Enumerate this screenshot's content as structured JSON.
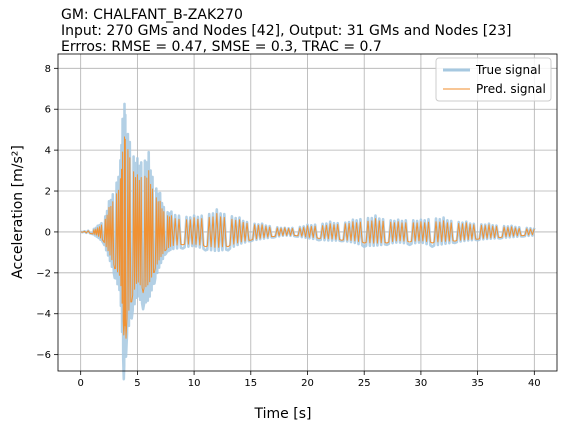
{
  "chart_data": {
    "type": "line",
    "title_lines": [
      "GM: CHALFANT_B-ZAK270",
      "Input: 270 GMs and Nodes [42], Output: 31 GMs and Nodes [23]",
      "Errros: RMSE = 0.47, SMSE = 0.3, TRAC = 0.7"
    ],
    "xlabel": "Time [s]",
    "ylabel": "Acceleration [m/s²]",
    "xlim": [
      -2,
      42
    ],
    "ylim": [
      -6.8,
      8.7
    ],
    "xticks": [
      0,
      5,
      10,
      15,
      20,
      25,
      30,
      35,
      40
    ],
    "yticks": [
      -6,
      -4,
      -2,
      0,
      2,
      4,
      6,
      8
    ],
    "grid": true,
    "legend_position": "top-right",
    "series": [
      {
        "name": "True signal",
        "color": "#a6c8e0",
        "style": "thick",
        "peaks": [
          [
            0,
            0
          ],
          [
            1,
            0.1
          ],
          [
            1.5,
            0.3
          ],
          [
            2,
            0.6
          ],
          [
            2.5,
            1.5
          ],
          [
            3,
            2.5
          ],
          [
            3.5,
            3.5
          ],
          [
            3.8,
            8.0
          ],
          [
            4.0,
            -6.1
          ],
          [
            4.5,
            4.7
          ],
          [
            5,
            3.6
          ],
          [
            5.5,
            4.2
          ],
          [
            6,
            3.9
          ],
          [
            6.5,
            2.8
          ],
          [
            7,
            1.9
          ],
          [
            7.5,
            1.2
          ],
          [
            8,
            1.0
          ],
          [
            9,
            0.9
          ],
          [
            10,
            0.8
          ],
          [
            11,
            1.0
          ],
          [
            12,
            1.1
          ],
          [
            13,
            1.0
          ],
          [
            14,
            0.7
          ],
          [
            15,
            0.5
          ],
          [
            16,
            0.4
          ],
          [
            17,
            0.3
          ],
          [
            18,
            0.2
          ],
          [
            19,
            0.25
          ],
          [
            20,
            0.35
          ],
          [
            21,
            0.45
          ],
          [
            22,
            0.5
          ],
          [
            23,
            0.5
          ],
          [
            24,
            0.6
          ],
          [
            25,
            0.8
          ],
          [
            26,
            0.8
          ],
          [
            27,
            0.7
          ],
          [
            28,
            0.6
          ],
          [
            29,
            0.7
          ],
          [
            30,
            0.6
          ],
          [
            31,
            0.8
          ],
          [
            32,
            0.7
          ],
          [
            33,
            0.6
          ],
          [
            34,
            0.5
          ],
          [
            35,
            0.45
          ],
          [
            36,
            0.4
          ],
          [
            37,
            0.35
          ],
          [
            38,
            0.3
          ],
          [
            39,
            0.25
          ],
          [
            40,
            0.2
          ]
        ]
      },
      {
        "name": "Pred. signal",
        "color": "#f28e2b",
        "style": "thin",
        "peaks": [
          [
            0,
            0
          ],
          [
            1,
            0.1
          ],
          [
            1.5,
            0.2
          ],
          [
            2,
            0.5
          ],
          [
            2.5,
            1.2
          ],
          [
            3,
            2.0
          ],
          [
            3.5,
            2.6
          ],
          [
            3.8,
            5.6
          ],
          [
            4.0,
            -5.2
          ],
          [
            4.5,
            3.8
          ],
          [
            5,
            2.8
          ],
          [
            5.5,
            3.3
          ],
          [
            6,
            3.0
          ],
          [
            6.5,
            2.2
          ],
          [
            7,
            1.5
          ],
          [
            7.5,
            1.0
          ],
          [
            8,
            0.8
          ],
          [
            9,
            0.7
          ],
          [
            10,
            0.7
          ],
          [
            11,
            0.8
          ],
          [
            12,
            0.9
          ],
          [
            13,
            0.8
          ],
          [
            14,
            0.6
          ],
          [
            15,
            0.45
          ],
          [
            16,
            0.35
          ],
          [
            17,
            0.25
          ],
          [
            18,
            0.2
          ],
          [
            19,
            0.2
          ],
          [
            20,
            0.3
          ],
          [
            21,
            0.35
          ],
          [
            22,
            0.4
          ],
          [
            23,
            0.45
          ],
          [
            24,
            0.5
          ],
          [
            25,
            0.6
          ],
          [
            26,
            0.65
          ],
          [
            27,
            0.6
          ],
          [
            28,
            0.5
          ],
          [
            29,
            0.55
          ],
          [
            30,
            0.5
          ],
          [
            31,
            0.6
          ],
          [
            32,
            0.55
          ],
          [
            33,
            0.5
          ],
          [
            34,
            0.45
          ],
          [
            35,
            0.4
          ],
          [
            36,
            0.35
          ],
          [
            37,
            0.3
          ],
          [
            38,
            0.25
          ],
          [
            39,
            0.2
          ],
          [
            40,
            0.15
          ]
        ]
      }
    ]
  }
}
